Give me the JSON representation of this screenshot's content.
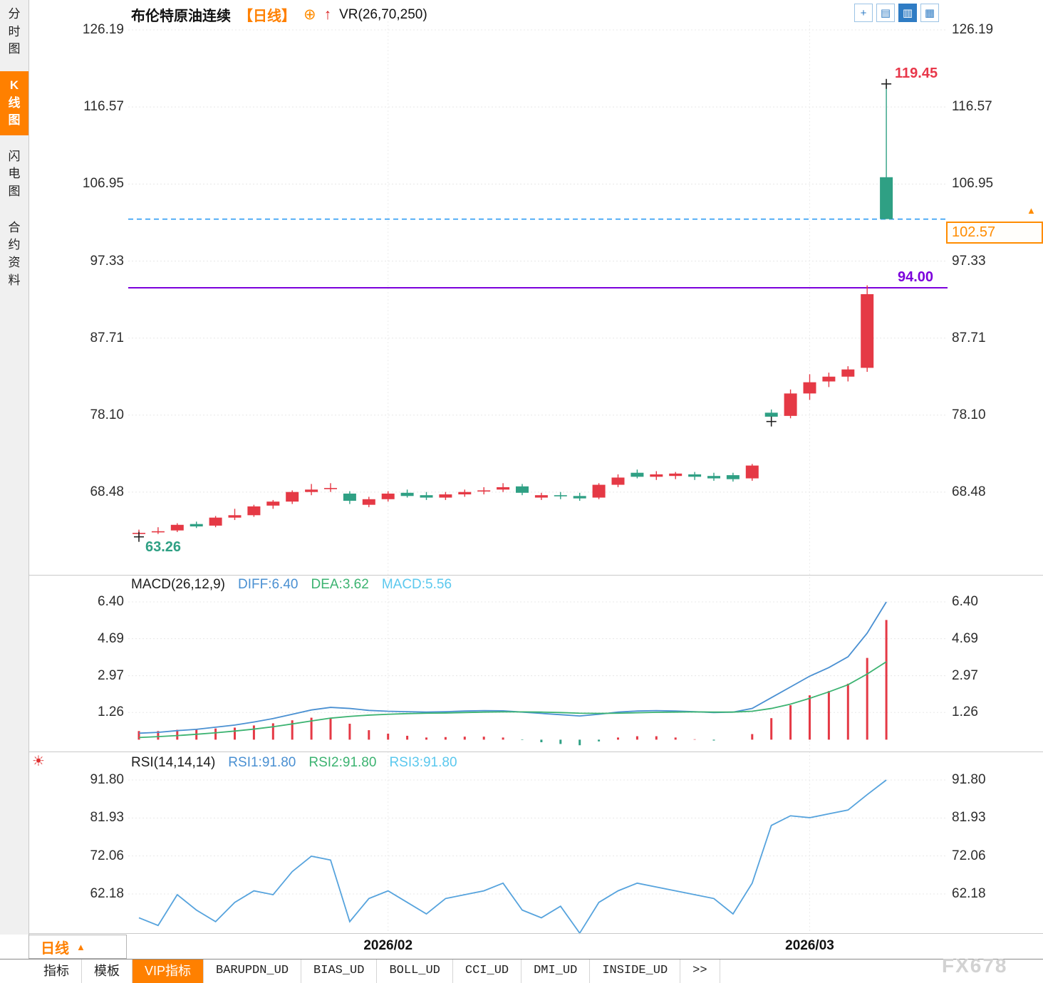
{
  "sidebar": {
    "tabs": [
      {
        "id": "time-chart",
        "label": "分时图",
        "active": false
      },
      {
        "id": "kline-chart",
        "label": "K线图",
        "active": true
      },
      {
        "id": "flash-chart",
        "label": "闪电图",
        "active": false
      },
      {
        "id": "contract-info",
        "label": "合约资料",
        "active": false
      }
    ]
  },
  "header": {
    "title": "布伦特原油连续",
    "period": "【日线】",
    "add_icon": "⊕",
    "arrow_icon": "↑",
    "indicator": "VR(26,70,250)"
  },
  "toolbar_icons": [
    {
      "name": "crosshair-icon",
      "glyph": "+",
      "active": false
    },
    {
      "name": "single-panel-icon",
      "glyph": "▤",
      "active": false
    },
    {
      "name": "multi-panel-icon",
      "glyph": "▥",
      "active": true
    },
    {
      "name": "split-panel-icon",
      "glyph": "▦",
      "active": false
    }
  ],
  "main_panel": {
    "high_label": "119.45",
    "low_label": "63.26",
    "purple_line_label": "94.00",
    "price_tag": "102.57",
    "price_marker_icon": "▲"
  },
  "macd_panel": {
    "name": "MACD(26,12,9)",
    "diff_label": "DIFF:6.40",
    "dea_label": "DEA:3.62",
    "macd_label": "MACD:5.56"
  },
  "rsi_panel": {
    "icon": "☀",
    "name": "RSI(14,14,14)",
    "rsi1_label": "RSI1:91.80",
    "rsi2_label": "RSI2:91.80",
    "rsi3_label": "RSI3:91.80"
  },
  "time_axis": {
    "period": "日线",
    "period_icon": "▲",
    "dates": [
      {
        "index": 13,
        "label": "2026/02"
      },
      {
        "index": 35,
        "label": "2026/03"
      }
    ]
  },
  "bottom_tabs": [
    {
      "label": "指标",
      "active": false,
      "mono": false
    },
    {
      "label": "模板",
      "active": false,
      "mono": false
    },
    {
      "label": "VIP指标",
      "active": true,
      "mono": false
    },
    {
      "label": "BARUPDN_UD",
      "active": false,
      "mono": true
    },
    {
      "label": "BIAS_UD",
      "active": false,
      "mono": true
    },
    {
      "label": "BOLL_UD",
      "active": false,
      "mono": true
    },
    {
      "label": "CCI_UD",
      "active": false,
      "mono": true
    },
    {
      "label": "DMI_UD",
      "active": false,
      "mono": true
    },
    {
      "label": "INSIDE_UD",
      "active": false,
      "mono": true
    },
    {
      "label": ">>",
      "active": false,
      "mono": true
    }
  ],
  "watermark": "FX678",
  "colors": {
    "up": "#e53945",
    "down": "#2fa084",
    "accent_orange": "#ff8000",
    "purple_line": "#7c00dc",
    "dashed_line": "#2196f3",
    "diff_blue": "#4a90d2",
    "dea_green": "#3cb371",
    "macd_cyan": "#5bc8ee",
    "rsi_blue": "#56a3dd"
  },
  "chart_data": [
    {
      "type": "candlestick",
      "symbol": "布伦特原油连续",
      "period": "日线",
      "overlay_indicator": "VR(26,70,250)",
      "y_ticks": [
        "126.19",
        "116.57",
        "106.95",
        "97.33",
        "87.71",
        "78.10",
        "68.48"
      ],
      "x_ticks": [
        {
          "index": 13,
          "label": "2026/02"
        },
        {
          "index": 35,
          "label": "2026/03"
        }
      ],
      "high_annotation": {
        "index": 39,
        "price": 119.45
      },
      "low_annotation": {
        "index": 1,
        "price": 63.26
      },
      "hlines": [
        {
          "value": 94.0,
          "style": "solid",
          "color": "#7c00dc"
        },
        {
          "value": 102.57,
          "style": "dashed",
          "color": "#2196f3"
        }
      ],
      "markers": [
        {
          "index": 0,
          "price": 62.9
        },
        {
          "index": 33,
          "price": 77.3
        },
        {
          "index": 39,
          "price": 119.45
        }
      ],
      "candles": [
        [
          63.4,
          63.8,
          62.9,
          63.4
        ],
        [
          63.6,
          64.1,
          63.26,
          63.6
        ],
        [
          63.7,
          64.6,
          63.5,
          64.4
        ],
        [
          64.5,
          64.8,
          64.0,
          64.2
        ],
        [
          64.3,
          65.5,
          64.1,
          65.3
        ],
        [
          65.3,
          66.4,
          65.0,
          65.6
        ],
        [
          65.6,
          66.9,
          65.4,
          66.7
        ],
        [
          66.8,
          67.5,
          66.4,
          67.3
        ],
        [
          67.3,
          68.7,
          67.0,
          68.5
        ],
        [
          68.5,
          69.5,
          68.1,
          68.8
        ],
        [
          69.0,
          69.6,
          68.5,
          69.0
        ],
        [
          68.3,
          68.6,
          67.0,
          67.4
        ],
        [
          66.9,
          67.9,
          66.6,
          67.6
        ],
        [
          67.6,
          68.6,
          67.3,
          68.3
        ],
        [
          68.4,
          68.8,
          67.8,
          68.0
        ],
        [
          68.1,
          68.5,
          67.5,
          67.8
        ],
        [
          67.8,
          68.5,
          67.5,
          68.2
        ],
        [
          68.2,
          68.8,
          67.9,
          68.5
        ],
        [
          68.6,
          69.1,
          68.2,
          68.7
        ],
        [
          68.8,
          69.6,
          68.5,
          69.1
        ],
        [
          69.2,
          69.5,
          68.1,
          68.4
        ],
        [
          67.8,
          68.4,
          67.5,
          68.1
        ],
        [
          68.1,
          68.5,
          67.6,
          68.0
        ],
        [
          68.0,
          68.4,
          67.4,
          67.7
        ],
        [
          67.8,
          69.6,
          67.6,
          69.4
        ],
        [
          69.4,
          70.7,
          69.1,
          70.3
        ],
        [
          70.9,
          71.3,
          70.2,
          70.4
        ],
        [
          70.4,
          71.1,
          70.0,
          70.7
        ],
        [
          70.5,
          71.0,
          70.1,
          70.8
        ],
        [
          70.7,
          71.0,
          70.0,
          70.4
        ],
        [
          70.5,
          70.9,
          69.9,
          70.2
        ],
        [
          70.6,
          70.9,
          69.8,
          70.1
        ],
        [
          70.2,
          72.0,
          69.9,
          71.8
        ],
        [
          78.4,
          78.8,
          77.3,
          77.9
        ],
        [
          78.0,
          81.3,
          77.7,
          80.8
        ],
        [
          80.8,
          83.2,
          80.0,
          82.2
        ],
        [
          82.3,
          83.4,
          81.6,
          82.9
        ],
        [
          82.9,
          84.2,
          82.3,
          83.8
        ],
        [
          84.0,
          94.3,
          83.5,
          93.2
        ],
        [
          107.8,
          119.45,
          102.57,
          102.57
        ]
      ]
    },
    {
      "type": "macd",
      "name": "MACD(26,12,9)",
      "y_ticks": [
        "6.40",
        "4.69",
        "2.97",
        "1.26"
      ],
      "diff": [
        0.3,
        0.34,
        0.42,
        0.48,
        0.58,
        0.68,
        0.82,
        0.98,
        1.18,
        1.38,
        1.5,
        1.45,
        1.36,
        1.32,
        1.3,
        1.28,
        1.3,
        1.33,
        1.35,
        1.34,
        1.28,
        1.22,
        1.16,
        1.1,
        1.18,
        1.28,
        1.33,
        1.35,
        1.33,
        1.3,
        1.26,
        1.28,
        1.45,
        1.95,
        2.45,
        2.95,
        3.35,
        3.85,
        4.95,
        6.4
      ],
      "dea": [
        0.1,
        0.14,
        0.19,
        0.25,
        0.32,
        0.4,
        0.49,
        0.6,
        0.73,
        0.87,
        1.0,
        1.08,
        1.14,
        1.18,
        1.21,
        1.23,
        1.24,
        1.26,
        1.28,
        1.29,
        1.29,
        1.28,
        1.26,
        1.23,
        1.22,
        1.23,
        1.25,
        1.27,
        1.28,
        1.29,
        1.28,
        1.28,
        1.32,
        1.45,
        1.65,
        1.92,
        2.22,
        2.55,
        3.05,
        3.62
      ],
      "hist": [
        0.4,
        0.4,
        0.46,
        0.46,
        0.52,
        0.56,
        0.66,
        0.76,
        0.9,
        1.02,
        1.0,
        0.74,
        0.44,
        0.28,
        0.18,
        0.1,
        0.12,
        0.14,
        0.14,
        0.1,
        -0.02,
        -0.12,
        -0.2,
        -0.26,
        -0.08,
        0.1,
        0.16,
        0.16,
        0.1,
        0.02,
        -0.04,
        0.0,
        0.26,
        1.0,
        1.6,
        2.06,
        2.26,
        2.6,
        3.8,
        5.56
      ],
      "last": {
        "diff": 6.4,
        "dea": 3.62,
        "macd": 5.56
      }
    },
    {
      "type": "line",
      "name": "RSI(14,14,14)",
      "y_ticks": [
        "91.80",
        "81.93",
        "72.06",
        "62.18"
      ],
      "series": [
        {
          "name": "RSI1",
          "values": [
            56,
            54,
            62,
            58,
            55,
            60,
            63,
            62,
            68,
            72,
            71,
            55,
            61,
            63,
            60,
            57,
            61,
            62,
            63,
            65,
            58,
            56,
            59,
            52,
            60,
            63,
            65,
            64,
            63,
            62,
            61,
            57,
            65,
            80,
            82.5,
            82,
            83,
            84,
            88,
            91.8
          ]
        }
      ],
      "last": {
        "rsi1": 91.8,
        "rsi2": 91.8,
        "rsi3": 91.8
      }
    }
  ]
}
